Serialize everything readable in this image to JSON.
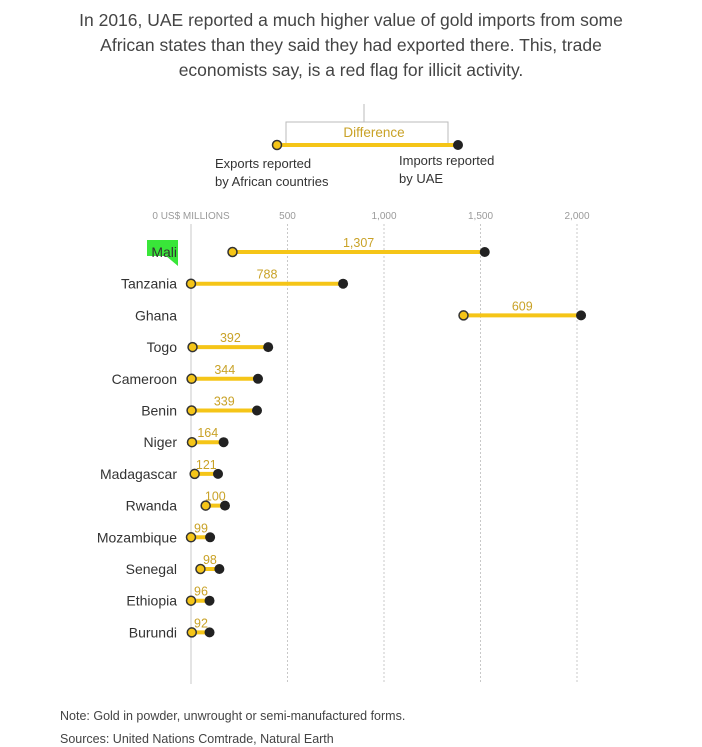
{
  "headline": "In 2016, UAE reported a much higher value of gold imports from some African states than they said they had exported there. This, trade economists say, is a red flag for illicit activity.",
  "legend": {
    "difference_label": "Difference",
    "exports_label_line1": "Exports reported",
    "exports_label_line2": "by African countries",
    "imports_label_line1": "Imports reported",
    "imports_label_line2": "by UAE"
  },
  "colors": {
    "bar": "#f5c518",
    "export_dot_fill": "#f5c518",
    "import_dot_fill": "#222222",
    "highlight": "#39e639",
    "value_label": "#c9a227"
  },
  "chart_data": {
    "type": "dot-range",
    "x_axis": {
      "range": [
        0,
        2000
      ],
      "ticks": [
        {
          "value": 0,
          "label": "0 US$ MILLIONS"
        },
        {
          "value": 500,
          "label": "500"
        },
        {
          "value": 1000,
          "label": "1,000"
        },
        {
          "value": 1500,
          "label": "1,500"
        },
        {
          "value": 2000,
          "label": "2,000"
        }
      ]
    },
    "series": [
      {
        "name": "Exports reported by African countries"
      },
      {
        "name": "Imports reported by UAE"
      }
    ],
    "rows": [
      {
        "country": "Mali",
        "exports": 215,
        "imports": 1522,
        "difference": "1,307",
        "highlight": true
      },
      {
        "country": "Tanzania",
        "exports": 0,
        "imports": 788,
        "difference": "788"
      },
      {
        "country": "Ghana",
        "exports": 1412,
        "imports": 2021,
        "difference": "609"
      },
      {
        "country": "Togo",
        "exports": 8,
        "imports": 400,
        "difference": "392"
      },
      {
        "country": "Cameroon",
        "exports": 3,
        "imports": 347,
        "difference": "344"
      },
      {
        "country": "Benin",
        "exports": 3,
        "imports": 342,
        "difference": "339"
      },
      {
        "country": "Niger",
        "exports": 5,
        "imports": 169,
        "difference": "164"
      },
      {
        "country": "Madagascar",
        "exports": 19,
        "imports": 140,
        "difference": "121"
      },
      {
        "country": "Rwanda",
        "exports": 76,
        "imports": 176,
        "difference": "100"
      },
      {
        "country": "Mozambique",
        "exports": 0,
        "imports": 99,
        "difference": "99"
      },
      {
        "country": "Senegal",
        "exports": 49,
        "imports": 147,
        "difference": "98"
      },
      {
        "country": "Ethiopia",
        "exports": 0,
        "imports": 96,
        "difference": "96"
      },
      {
        "country": "Burundi",
        "exports": 4,
        "imports": 96,
        "difference": "92"
      }
    ]
  },
  "footnotes": {
    "note": "Note: Gold in powder, unwrought or semi-manufactured forms.",
    "sources": "Sources: United Nations Comtrade, Natural Earth"
  }
}
